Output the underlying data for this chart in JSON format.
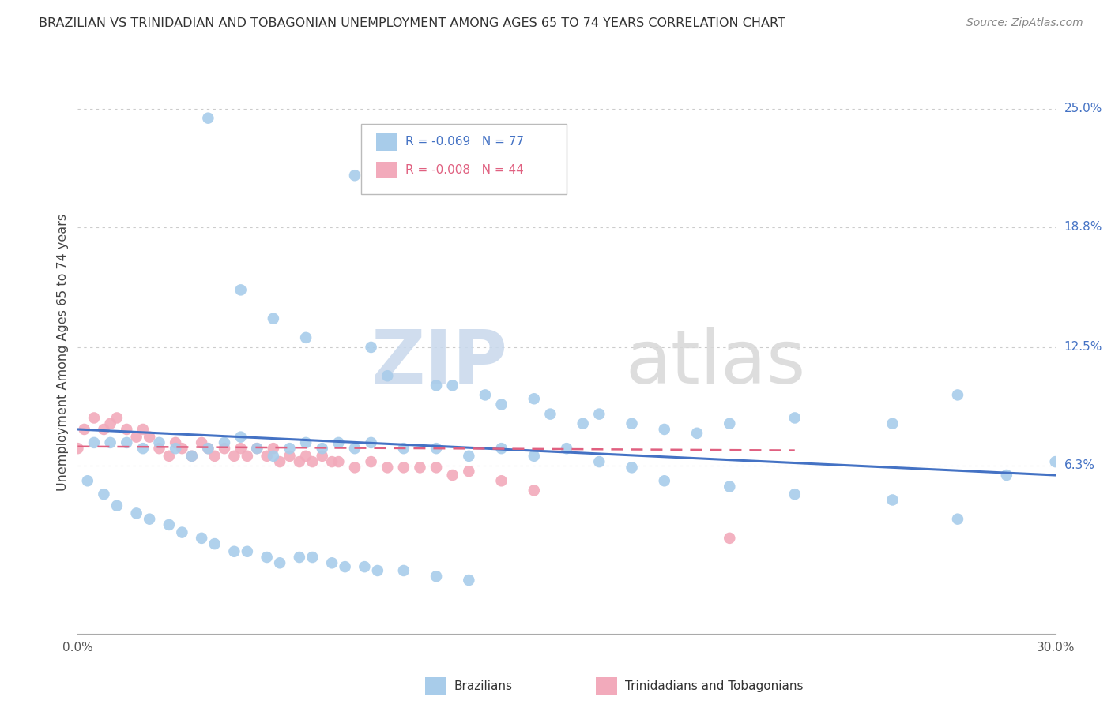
{
  "title": "BRAZILIAN VS TRINIDADIAN AND TOBAGONIAN UNEMPLOYMENT AMONG AGES 65 TO 74 YEARS CORRELATION CHART",
  "source": "Source: ZipAtlas.com",
  "ylabel": "Unemployment Among Ages 65 to 74 years",
  "xlim": [
    0.0,
    0.3
  ],
  "ylim": [
    -0.025,
    0.27
  ],
  "xticks": [
    0.0,
    0.05,
    0.1,
    0.15,
    0.2,
    0.25,
    0.3
  ],
  "xticklabels": [
    "0.0%",
    "",
    "",
    "",
    "",
    "",
    "30.0%"
  ],
  "ytick_positions": [
    0.063,
    0.125,
    0.188,
    0.25
  ],
  "ytick_labels": [
    "6.3%",
    "12.5%",
    "18.8%",
    "25.0%"
  ],
  "color_brazilian": "#A8CCEA",
  "color_trinidadian": "#F2AABB",
  "line_color_brazilian": "#4472C4",
  "line_color_trinidadian": "#E06080",
  "R_brazilian": -0.069,
  "N_brazilian": 77,
  "R_trinidadian": -0.008,
  "N_trinidadian": 44,
  "watermark_zip": "ZIP",
  "watermark_atlas": "atlas",
  "background_color": "#FFFFFF",
  "grid_color": "#CCCCCC",
  "legend_label1": "Brazilians",
  "legend_label2": "Trinidadians and Tobagonians",
  "brazilian_x": [
    0.04,
    0.085,
    0.05,
    0.06,
    0.07,
    0.09,
    0.095,
    0.11,
    0.115,
    0.125,
    0.13,
    0.14,
    0.145,
    0.155,
    0.16,
    0.17,
    0.18,
    0.19,
    0.2,
    0.22,
    0.25,
    0.27,
    0.285,
    0.3,
    0.005,
    0.01,
    0.015,
    0.02,
    0.025,
    0.03,
    0.035,
    0.04,
    0.045,
    0.05,
    0.055,
    0.06,
    0.065,
    0.07,
    0.075,
    0.08,
    0.085,
    0.09,
    0.1,
    0.11,
    0.12,
    0.13,
    0.14,
    0.15,
    0.16,
    0.17,
    0.18,
    0.2,
    0.22,
    0.25,
    0.27,
    0.003,
    0.008,
    0.012,
    0.018,
    0.022,
    0.028,
    0.032,
    0.038,
    0.042,
    0.048,
    0.052,
    0.058,
    0.062,
    0.068,
    0.072,
    0.078,
    0.082,
    0.088,
    0.092,
    0.1,
    0.11,
    0.12
  ],
  "brazilian_y": [
    0.245,
    0.215,
    0.155,
    0.14,
    0.13,
    0.125,
    0.11,
    0.105,
    0.105,
    0.1,
    0.095,
    0.098,
    0.09,
    0.085,
    0.09,
    0.085,
    0.082,
    0.08,
    0.085,
    0.088,
    0.085,
    0.1,
    0.058,
    0.065,
    0.075,
    0.075,
    0.075,
    0.072,
    0.075,
    0.072,
    0.068,
    0.072,
    0.075,
    0.078,
    0.072,
    0.068,
    0.072,
    0.075,
    0.072,
    0.075,
    0.072,
    0.075,
    0.072,
    0.072,
    0.068,
    0.072,
    0.068,
    0.072,
    0.065,
    0.062,
    0.055,
    0.052,
    0.048,
    0.045,
    0.035,
    0.055,
    0.048,
    0.042,
    0.038,
    0.035,
    0.032,
    0.028,
    0.025,
    0.022,
    0.018,
    0.018,
    0.015,
    0.012,
    0.015,
    0.015,
    0.012,
    0.01,
    0.01,
    0.008,
    0.008,
    0.005,
    0.003
  ],
  "trini_x": [
    0.0,
    0.002,
    0.005,
    0.008,
    0.01,
    0.012,
    0.015,
    0.018,
    0.02,
    0.022,
    0.025,
    0.028,
    0.03,
    0.032,
    0.035,
    0.038,
    0.04,
    0.042,
    0.045,
    0.048,
    0.05,
    0.052,
    0.055,
    0.058,
    0.06,
    0.062,
    0.065,
    0.068,
    0.07,
    0.072,
    0.075,
    0.078,
    0.08,
    0.085,
    0.09,
    0.095,
    0.1,
    0.105,
    0.11,
    0.115,
    0.12,
    0.13,
    0.14,
    0.2
  ],
  "trini_y": [
    0.072,
    0.082,
    0.088,
    0.082,
    0.085,
    0.088,
    0.082,
    0.078,
    0.082,
    0.078,
    0.072,
    0.068,
    0.075,
    0.072,
    0.068,
    0.075,
    0.072,
    0.068,
    0.072,
    0.068,
    0.072,
    0.068,
    0.072,
    0.068,
    0.072,
    0.065,
    0.068,
    0.065,
    0.068,
    0.065,
    0.068,
    0.065,
    0.065,
    0.062,
    0.065,
    0.062,
    0.062,
    0.062,
    0.062,
    0.058,
    0.06,
    0.055,
    0.05,
    0.025
  ],
  "trend_braz_x0": 0.0,
  "trend_braz_x1": 0.3,
  "trend_braz_y0": 0.082,
  "trend_braz_y1": 0.058,
  "trend_trini_x0": 0.0,
  "trend_trini_x1": 0.22,
  "trend_trini_y0": 0.073,
  "trend_trini_y1": 0.071
}
